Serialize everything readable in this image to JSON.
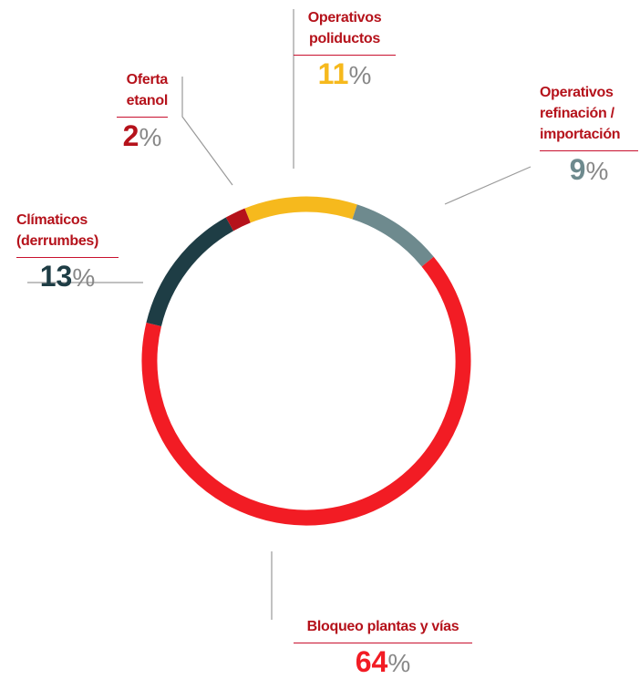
{
  "chart_data": {
    "type": "donut",
    "categories": [
      "Operativos\npoliductos",
      "Operativos\nrefinación /\nimportación",
      "Bloqueo plantas y vías",
      "Clímaticos\n(derrumbes)",
      "Oferta\netanol"
    ],
    "values": [
      11,
      9,
      64,
      13,
      2
    ],
    "unit": "%",
    "colors": [
      "#f6b91d",
      "#6e8a8e",
      "#f21c24",
      "#1e3d45",
      "#b5121b"
    ]
  }
}
